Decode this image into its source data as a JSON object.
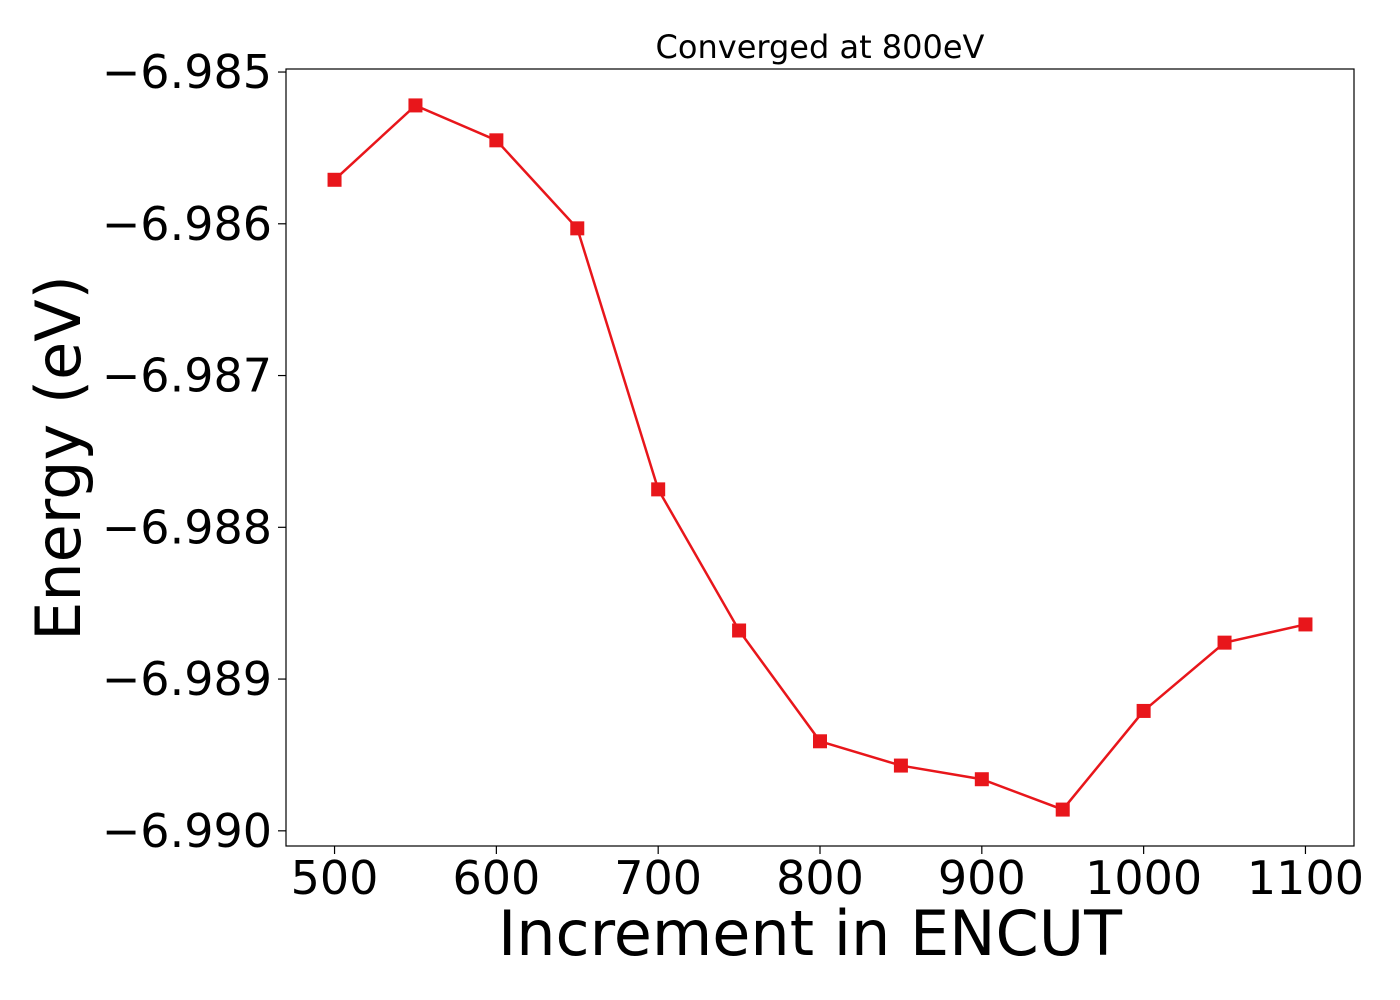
{
  "chart_data": {
    "type": "line",
    "title": "Converged at 800eV",
    "xlabel": "Increment in ENCUT",
    "ylabel": "Energy (eV)",
    "xlim": [
      470,
      1130
    ],
    "ylim": [
      -6.9901,
      -6.98498
    ],
    "x_ticks": [
      500,
      600,
      700,
      800,
      900,
      1000,
      1100
    ],
    "x_tick_labels": [
      "500",
      "600",
      "700",
      "800",
      "900",
      "1000",
      "1100"
    ],
    "y_ticks": [
      -6.985,
      -6.986,
      -6.987,
      -6.988,
      -6.989,
      -6.99
    ],
    "y_tick_labels": [
      "−6.985",
      "−6.986",
      "−6.987",
      "−6.988",
      "−6.989",
      "−6.990"
    ],
    "grid": false,
    "series": [
      {
        "color": "#e8161b",
        "marker": "square",
        "x": [
          500,
          550,
          600,
          650,
          700,
          750,
          800,
          850,
          900,
          950,
          1000,
          1050,
          1100
        ],
        "values": [
          -6.98571,
          -6.98522,
          -6.98545,
          -6.98603,
          -6.98775,
          -6.98868,
          -6.98941,
          -6.98957,
          -6.98966,
          -6.98986,
          -6.98921,
          -6.98876,
          -6.98864
        ]
      }
    ]
  }
}
